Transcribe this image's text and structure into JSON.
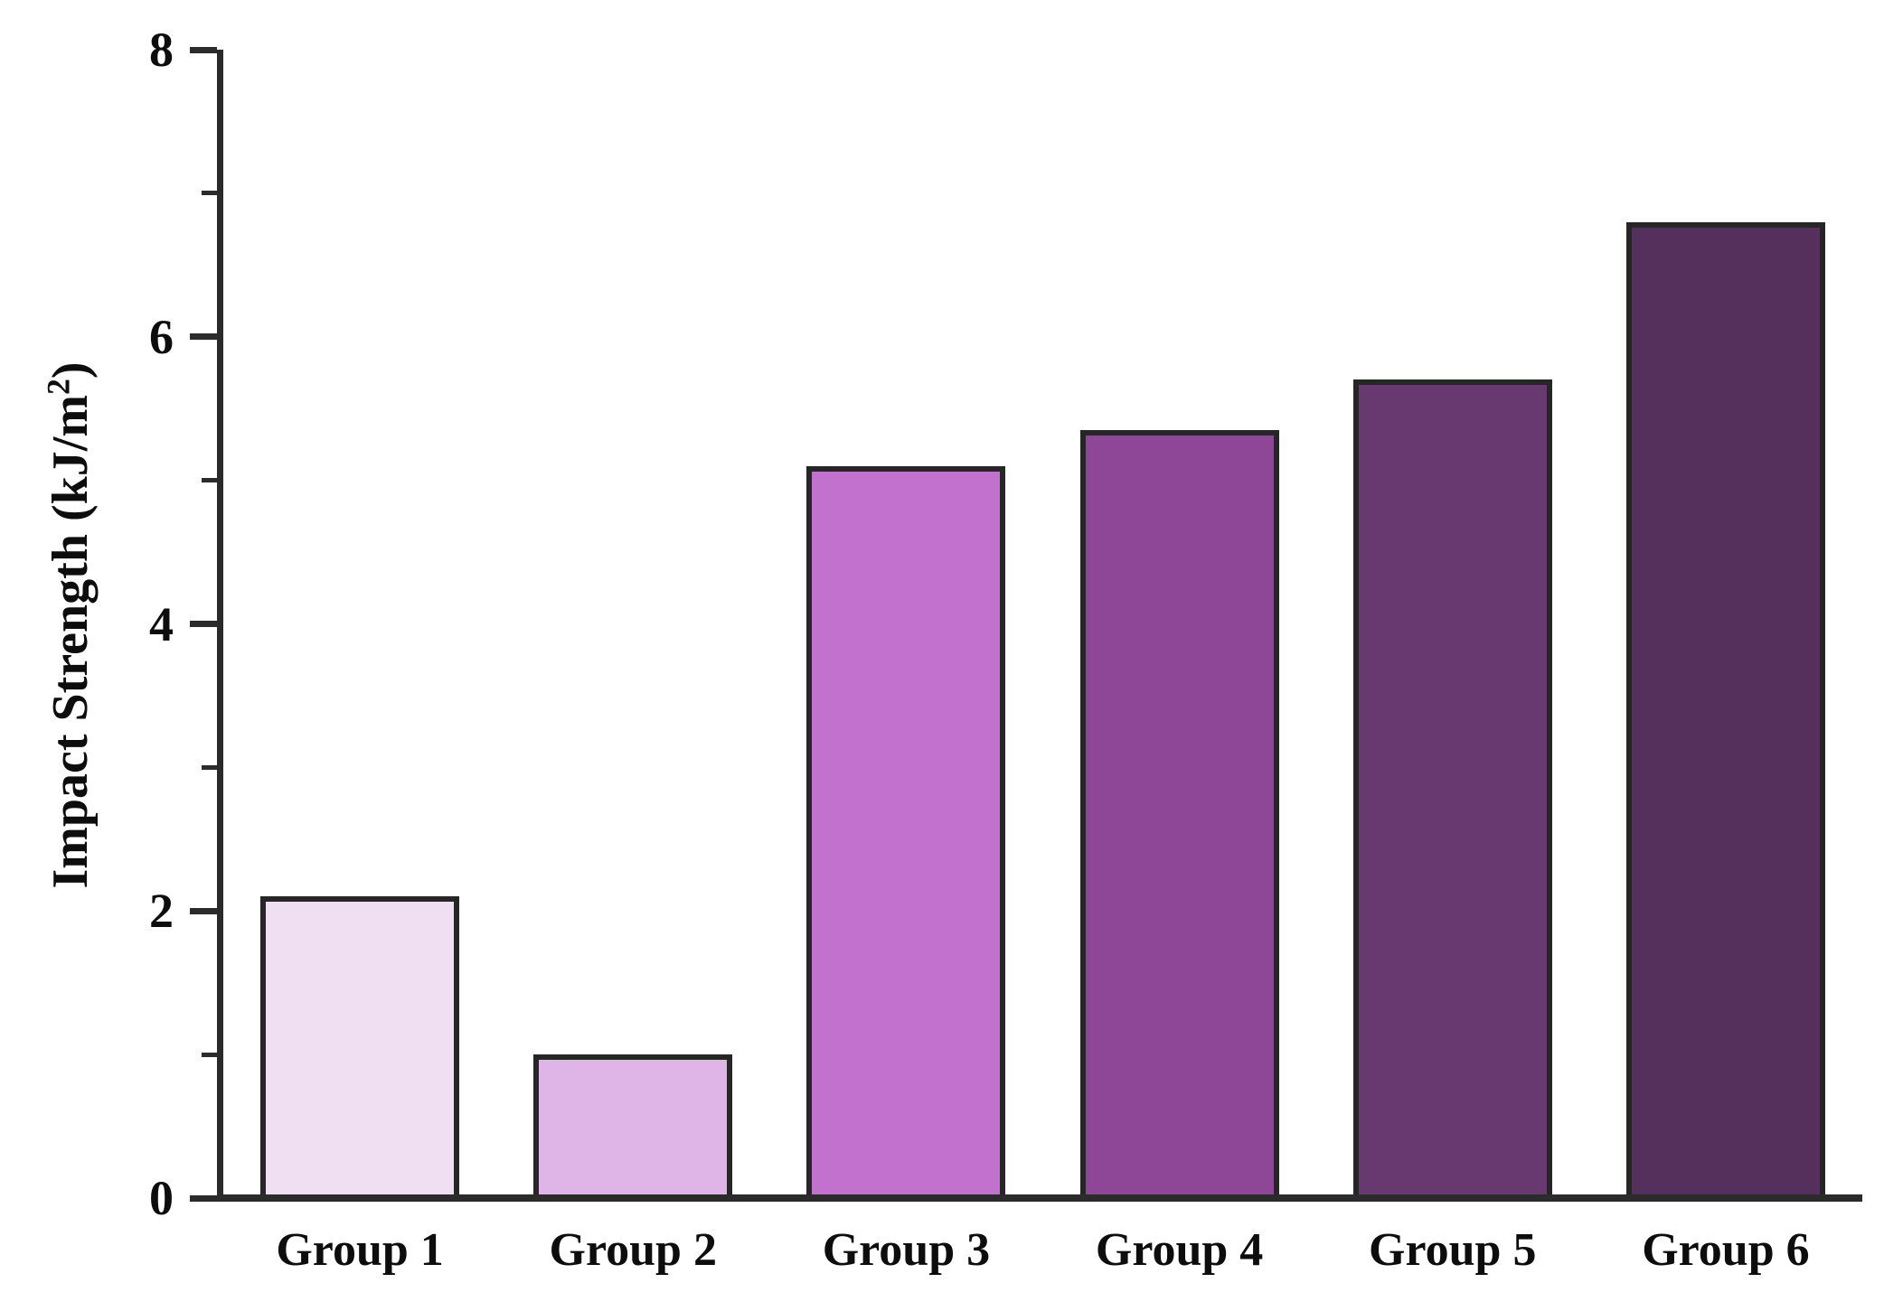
{
  "figure": {
    "background_color": "#ffffff",
    "axis_color": "#2b2b2b",
    "bar_border_color": "#262626",
    "text_color": "#0d0d0d"
  },
  "chart_data": {
    "type": "bar",
    "title": "",
    "categories": [
      "Group 1",
      "Group 2",
      "Group 3",
      "Group 4",
      "Group 5",
      "Group 6"
    ],
    "values": [
      2.1,
      1.0,
      5.1,
      5.35,
      5.7,
      6.8
    ],
    "bar_colors": [
      "#f0def2",
      "#dfb4e6",
      "#c271cf",
      "#8e4697",
      "#673970",
      "#55305c"
    ],
    "xlabel": "",
    "ylabel": "Impact Strength (kJ/m²)",
    "ylabel_parts": {
      "main": "Impact Strength (kJ/m",
      "sup": "2",
      "close": ")"
    },
    "ylim": [
      0,
      8
    ],
    "yticks_major": [
      0,
      2,
      4,
      6,
      8
    ],
    "yticks_minor": [
      1,
      3,
      5,
      7
    ],
    "grid": false,
    "legend": null,
    "layout": {
      "spines_visible": [
        "left",
        "bottom"
      ],
      "tick_direction": "out"
    }
  }
}
